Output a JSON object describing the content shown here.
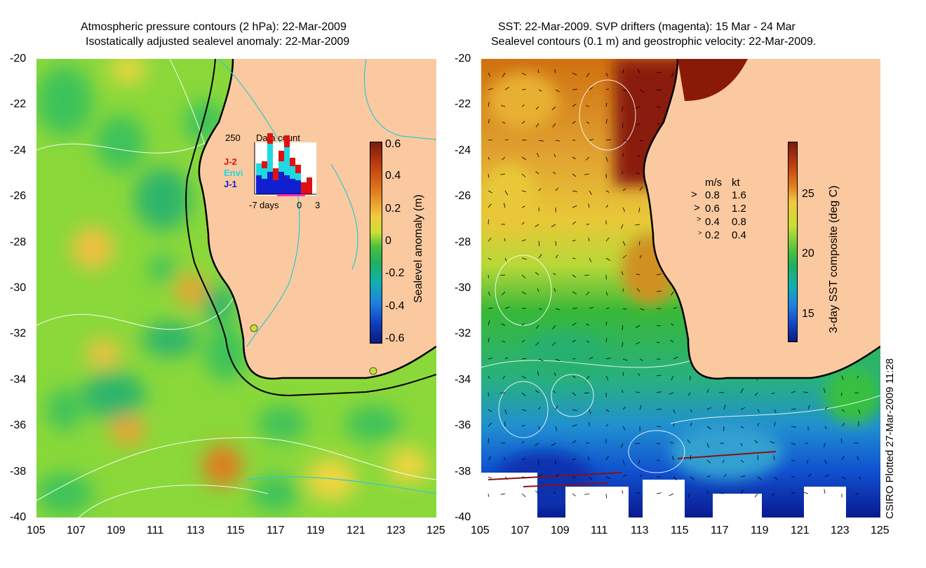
{
  "left_panel": {
    "title_line1": "Atmospheric pressure contours (2 hPa): 22-Mar-2009",
    "title_line2": "Isostatically adjusted sealevel anomaly: 22-Mar-2009",
    "colorbar_label": "Sealevel anomaly (m)",
    "colorbar_ticks": [
      "0.6",
      "0.4",
      "0.2",
      "0",
      "-0.2",
      "-0.4",
      "-0.6"
    ],
    "inset": {
      "top_value": "250",
      "title": "Data count",
      "legend": [
        {
          "label": "J-2",
          "color": "#e01010"
        },
        {
          "label": "Envi",
          "color": "#20d8e0"
        },
        {
          "label": "J-1",
          "color": "#1020d0"
        }
      ],
      "axis_labels": [
        "-7",
        "days",
        "0",
        "3"
      ]
    }
  },
  "right_panel": {
    "title_line1": "SST: 22-Mar-2009. SVP drifters (magenta): 15 Mar - 24 Mar",
    "title_line2": "Sealevel contours (0.1 m) and geostrophic velocity: 22-Mar-2009.",
    "colorbar_label": "3-day SST composite (deg C)",
    "colorbar_ticks": [
      "25",
      "20",
      "15"
    ],
    "velocity_legend": {
      "header_ms": "m/s",
      "header_kt": "kt",
      "rows": [
        {
          "ms": "0.8",
          "kt": "1.6"
        },
        {
          "ms": "0.6",
          "kt": "1.2"
        },
        {
          "ms": "0.4",
          "kt": "0.8"
        },
        {
          "ms": "0.2",
          "kt": "0.4"
        }
      ]
    }
  },
  "axes": {
    "lat_ticks": [
      "-20",
      "-22",
      "-24",
      "-26",
      "-28",
      "-30",
      "-32",
      "-34",
      "-36",
      "-38",
      "-40"
    ],
    "lon_ticks": [
      "105",
      "107",
      "109",
      "111",
      "113",
      "115",
      "117",
      "119",
      "121",
      "123",
      "125"
    ]
  },
  "credit": "CSIRO Plotted 27-Mar-2009 11:28",
  "colors": {
    "land": "#fbc9a0",
    "coast": "#000000",
    "contour": "#ffffff",
    "bathy": "#2fc8d0"
  }
}
